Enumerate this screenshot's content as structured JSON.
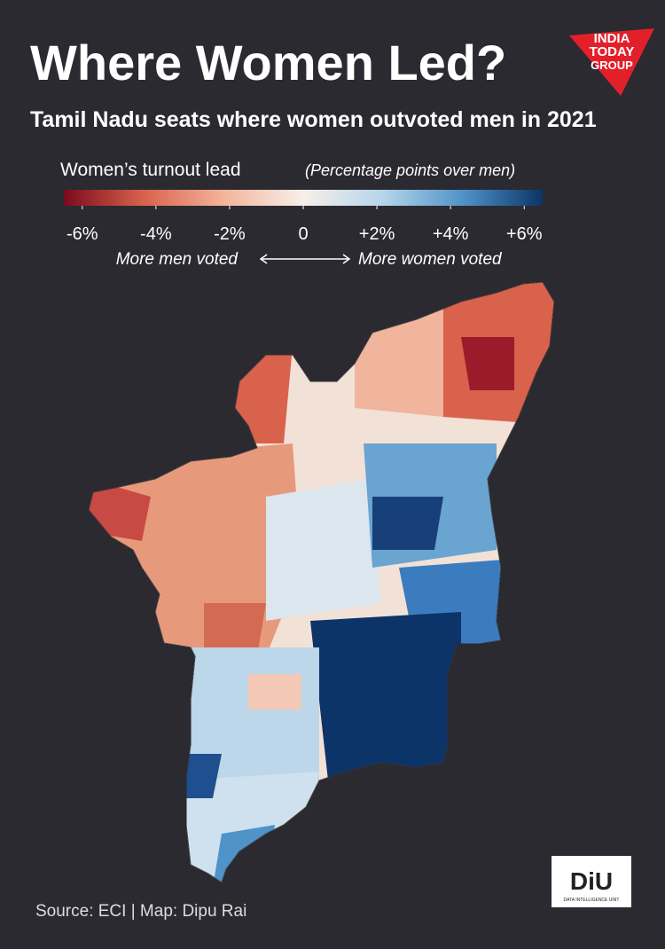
{
  "header": {
    "title": "Where Women Led?",
    "subtitle": "Tamil Nadu seats where women outvoted men in 2021"
  },
  "logo": {
    "line1": "INDIA",
    "line2": "TODAY",
    "line3": "GROUP"
  },
  "legend": {
    "title": "Women’s turnout lead",
    "subtitle": "(Percentage points over men)",
    "lim": [
      -6.5,
      6.5
    ],
    "colors": [
      "#7a0a1c",
      "#d9624c",
      "#f4b49a",
      "#f6efe9",
      "#b5d5ea",
      "#4f93c8",
      "#0c3468"
    ],
    "ticks": [
      {
        "value": -6,
        "label": "-6%"
      },
      {
        "value": -4,
        "label": "-4%"
      },
      {
        "value": -2,
        "label": "-2%"
      },
      0,
      {
        "value": 2,
        "label": "+2%"
      },
      {
        "value": 4,
        "label": "+4%"
      },
      {
        "value": 6,
        "label": "+6%"
      }
    ],
    "left_note": "More men voted",
    "right_note": "More women voted"
  },
  "footer": {
    "source": "Source: ECI | Map: Dipu Rai",
    "badge": "DiU",
    "badge_caption": "DATA INTELLIGENCE UNIT"
  }
}
